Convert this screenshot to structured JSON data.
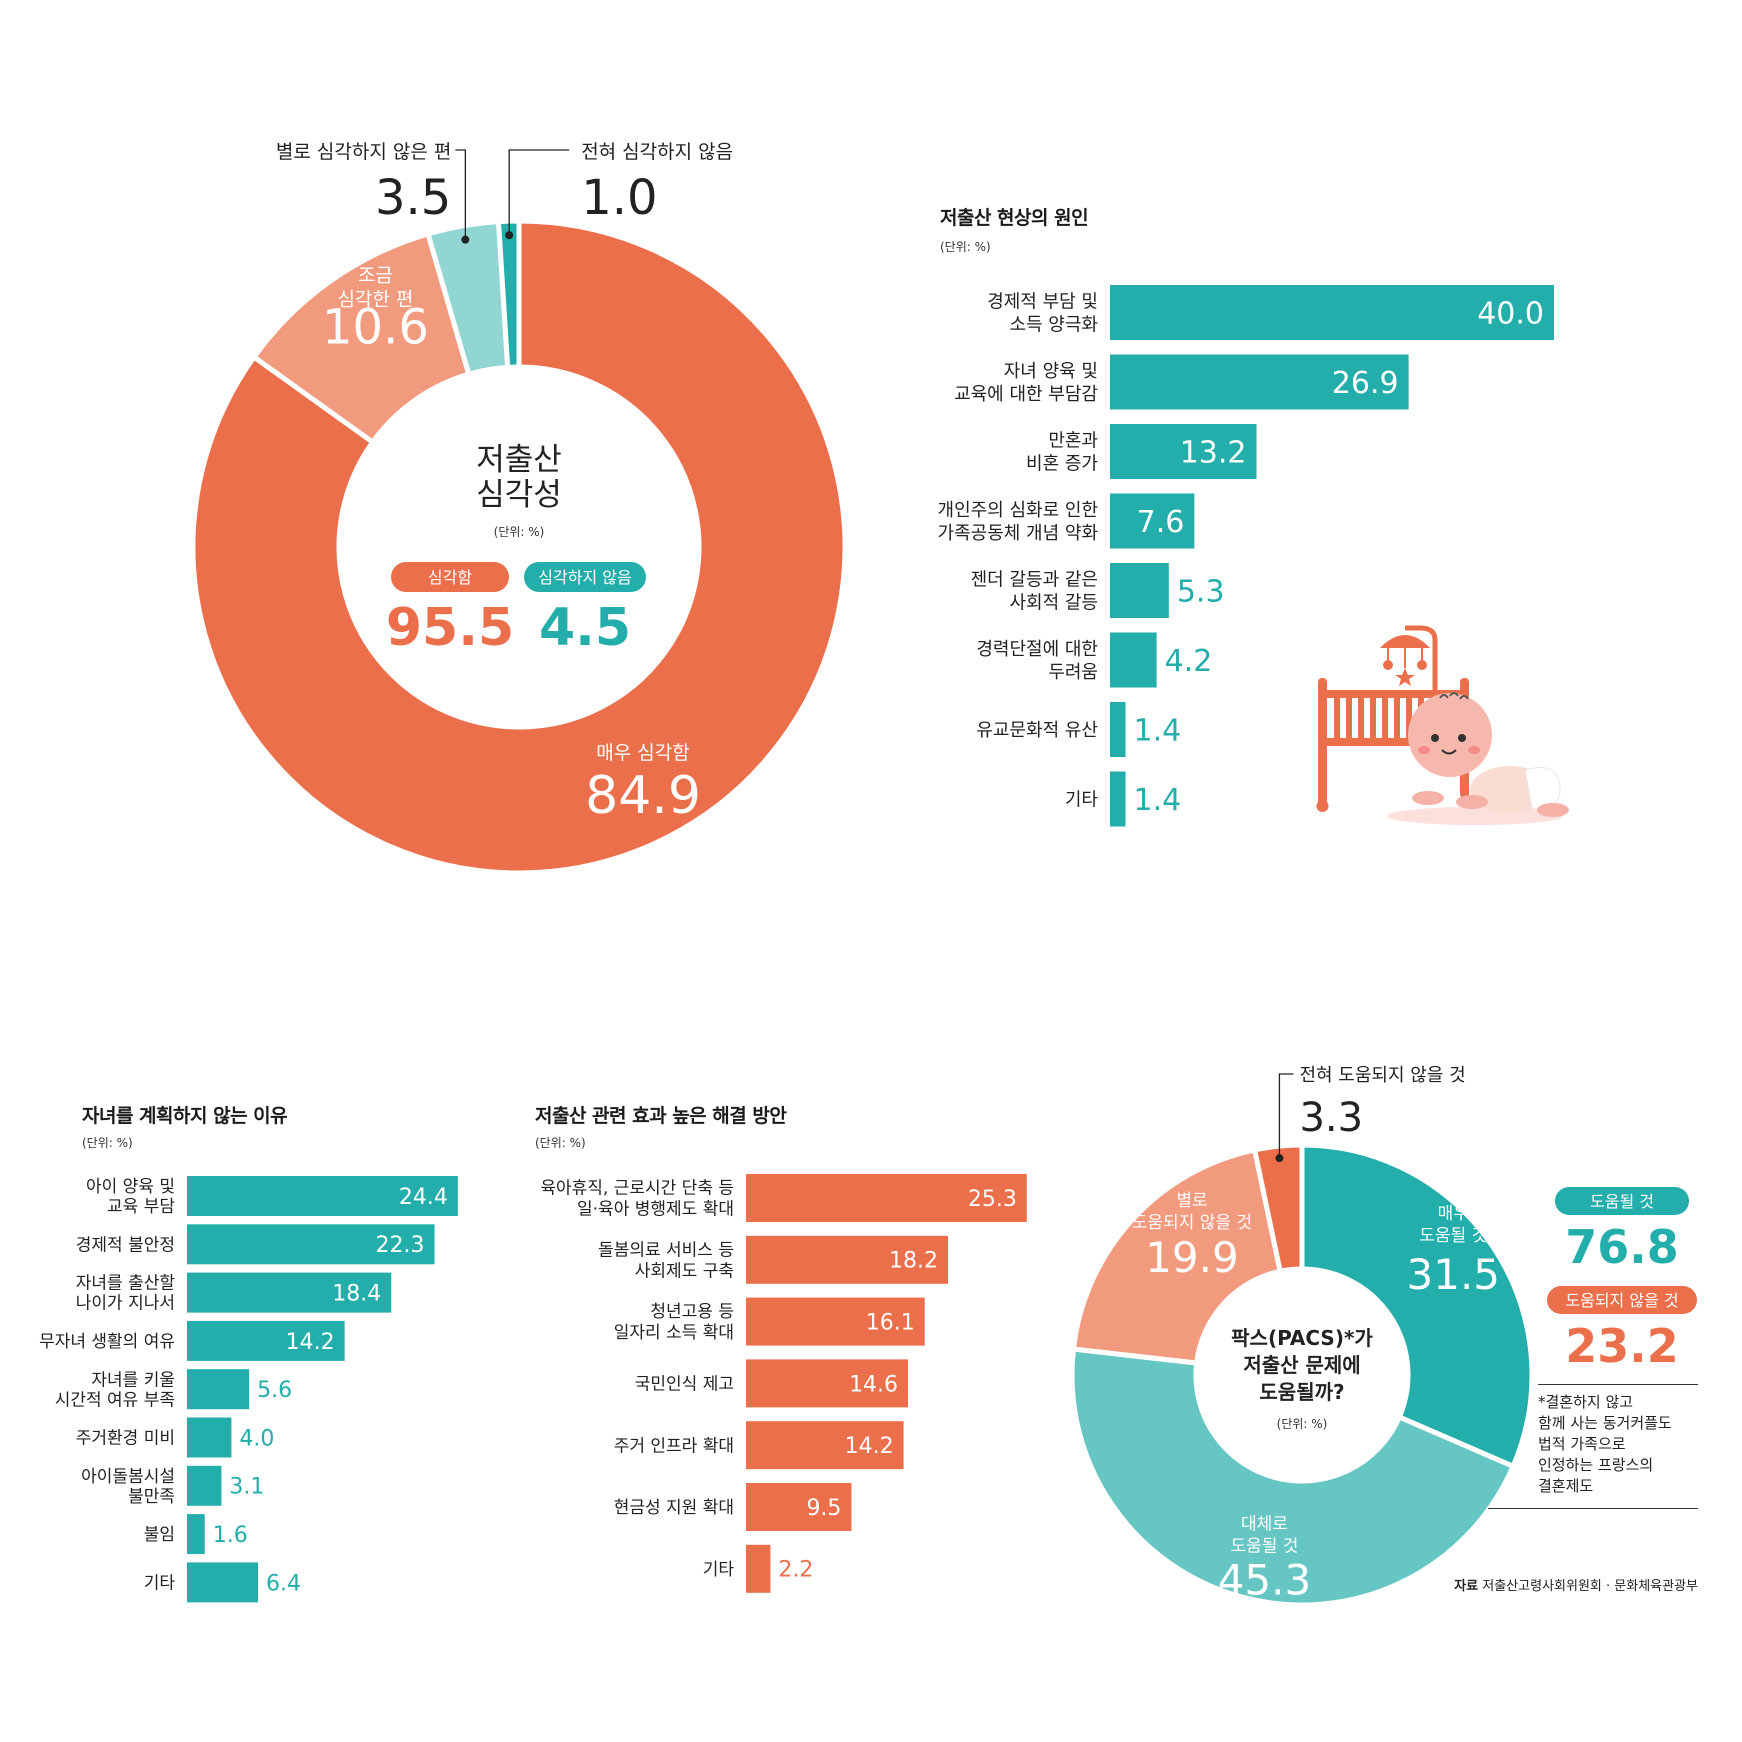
{
  "colors": {
    "teal": "#23aeab",
    "orange": "#ec6f4b",
    "light_orange": "#f19a7e",
    "light_teal": "#92d6d4",
    "mid_teal": "#66c6c3"
  },
  "chart_data": [
    {
      "id": "seriousness",
      "type": "pie",
      "title": "저출산\n심각성",
      "unit": "(단위: %)",
      "slices": [
        {
          "label": "매우 심각함",
          "value": 84.9,
          "color": "#ec6f4b"
        },
        {
          "label": "조금\n심각한 편",
          "value": 10.6,
          "color": "#f19a7e"
        },
        {
          "label": "별로 심각하지 않은 편",
          "value": 3.5,
          "color": "#92d6d4"
        },
        {
          "label": "전혀 심각하지 않음",
          "value": 1.0,
          "color": "#23aeab"
        }
      ],
      "summary": [
        {
          "label": "심각함",
          "value": "95.5",
          "color": "#ec6f4b"
        },
        {
          "label": "심각하지 않음",
          "value": "4.5",
          "color": "#23aeab"
        }
      ]
    },
    {
      "id": "causes",
      "type": "bar",
      "title": "저출산 현상의 원인",
      "unit": "(단위: %)",
      "categories": [
        "경제적 부담 및\n소득 양극화",
        "자녀 양육 및\n교육에 대한 부담감",
        "만혼과\n비혼 증가",
        "개인주의 심화로 인한\n가족공동체 개념 약화",
        "젠더 갈등과 같은\n사회적 갈등",
        "경력단절에 대한\n두려움",
        "유교문화적 유산",
        "기타"
      ],
      "values": [
        40.0,
        26.9,
        13.2,
        7.6,
        5.3,
        4.2,
        1.4,
        1.4
      ],
      "labels": [
        "40.0",
        "26.9",
        "13.2",
        "7.6",
        "5.3",
        "4.2",
        "1.4",
        "1.4"
      ],
      "color": "#23aeab"
    },
    {
      "id": "no_children",
      "type": "bar",
      "title": "자녀를 계획하지 않는 이유",
      "unit": "(단위: %)",
      "categories": [
        "아이 양육 및\n교육 부담",
        "경제적 불안정",
        "자녀를 출산할\n나이가 지나서",
        "무자녀 생활의 여유",
        "자녀를 키울\n시간적 여유 부족",
        "주거환경 미비",
        "아이돌봄시설\n불만족",
        "불임",
        "기타"
      ],
      "values": [
        24.4,
        22.3,
        18.4,
        14.2,
        5.6,
        4.0,
        3.1,
        1.6,
        6.4
      ],
      "labels": [
        "24.4",
        "22.3",
        "18.4",
        "14.2",
        "5.6",
        "4.0",
        "3.1",
        "1.6",
        "6.4"
      ],
      "color": "#23aeab"
    },
    {
      "id": "solutions",
      "type": "bar",
      "title": "저출산 관련 효과 높은 해결 방안",
      "unit": "(단위: %)",
      "categories": [
        "육아휴직, 근로시간 단축 등\n일·육아 병행제도 확대",
        "돌봄의료 서비스 등\n사회제도 구축",
        "청년고용 등\n일자리 소득 확대",
        "국민인식 제고",
        "주거 인프라 확대",
        "현금성 지원 확대",
        "기타"
      ],
      "values": [
        25.3,
        18.2,
        16.1,
        14.6,
        14.2,
        9.5,
        2.2
      ],
      "labels": [
        "25.3",
        "18.2",
        "16.1",
        "14.6",
        "14.2",
        "9.5",
        "2.2"
      ],
      "color": "#ec6f4b"
    },
    {
      "id": "pacs",
      "type": "pie",
      "title": "팍스(PACS)*가\n저출산 문제에\n도움될까?",
      "unit": "(단위: %)",
      "slices": [
        {
          "label": "매우\n도움될 것",
          "value": 31.5,
          "color": "#23aeab"
        },
        {
          "label": "대체로\n도움될 것",
          "value": 45.3,
          "color": "#66c6c3"
        },
        {
          "label": "별로\n도움되지 않을 것",
          "value": 19.9,
          "color": "#f19a7e"
        },
        {
          "label": "전혀 도움되지 않을 것",
          "value": 3.3,
          "color": "#ec6f4b"
        }
      ],
      "summary": [
        {
          "label": "도움될 것",
          "value": "76.8",
          "color": "#23aeab"
        },
        {
          "label": "도움되지 않을 것",
          "value": "23.2",
          "color": "#ec6f4b"
        }
      ]
    }
  ],
  "footnote": "*결혼하지 않고\n함께 사는 동거커플도\n법적 가족으로\n인정하는 프랑스의\n결혼제도",
  "source": {
    "label": "자료",
    "text": "저출산고령사회위원회 · 문화체육관광부"
  }
}
